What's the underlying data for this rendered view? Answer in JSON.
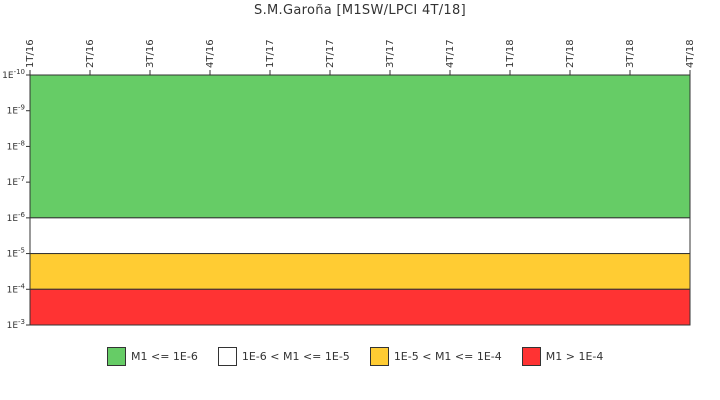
{
  "chart_data": {
    "type": "area",
    "title": "S.M.Garoña [M1SW/LPCI 4T/18]",
    "x_categories": [
      "1T/16",
      "2T/16",
      "3T/16",
      "4T/16",
      "1T/17",
      "2T/17",
      "3T/17",
      "4T/17",
      "1T/18",
      "2T/18",
      "3T/18",
      "4T/18"
    ],
    "y_scale": "log",
    "y_ticks": [
      {
        "value": 1e-10,
        "label": "1E-10"
      },
      {
        "value": 1e-09,
        "label": "1E-9"
      },
      {
        "value": 1e-08,
        "label": "1E-8"
      },
      {
        "value": 1e-07,
        "label": "1E-7"
      },
      {
        "value": 1e-06,
        "label": "1E-6"
      },
      {
        "value": 1e-05,
        "label": "1E-5"
      },
      {
        "value": 0.0001,
        "label": "1E-4"
      },
      {
        "value": 0.001,
        "label": "1E-3"
      }
    ],
    "y_axis_top_value": 1e-10,
    "y_axis_bottom_value": 0.001,
    "bands": [
      {
        "name": "M1 <= 1E-6",
        "from": 1e-10,
        "to": 1e-06,
        "color": "#66cc66"
      },
      {
        "name": "1E-6 < M1 <= 1E-5",
        "from": 1e-06,
        "to": 1e-05,
        "color": "#ffffff"
      },
      {
        "name": "1E-5 < M1 <= 1E-4",
        "from": 1e-05,
        "to": 0.0001,
        "color": "#ffcc33"
      },
      {
        "name": "M1 > 1E-4",
        "from": 0.0001,
        "to": 0.001,
        "color": "#ff3333"
      }
    ],
    "legend": [
      {
        "label": "M1 <= 1E-6",
        "color": "#66cc66"
      },
      {
        "label": "1E-6 < M1 <= 1E-5",
        "color": "#ffffff"
      },
      {
        "label": "1E-5 < M1 <= 1E-4",
        "color": "#ffcc33"
      },
      {
        "label": "M1 > 1E-4",
        "color": "#ff3333"
      }
    ],
    "legend_position": "bottom",
    "grid": false
  }
}
